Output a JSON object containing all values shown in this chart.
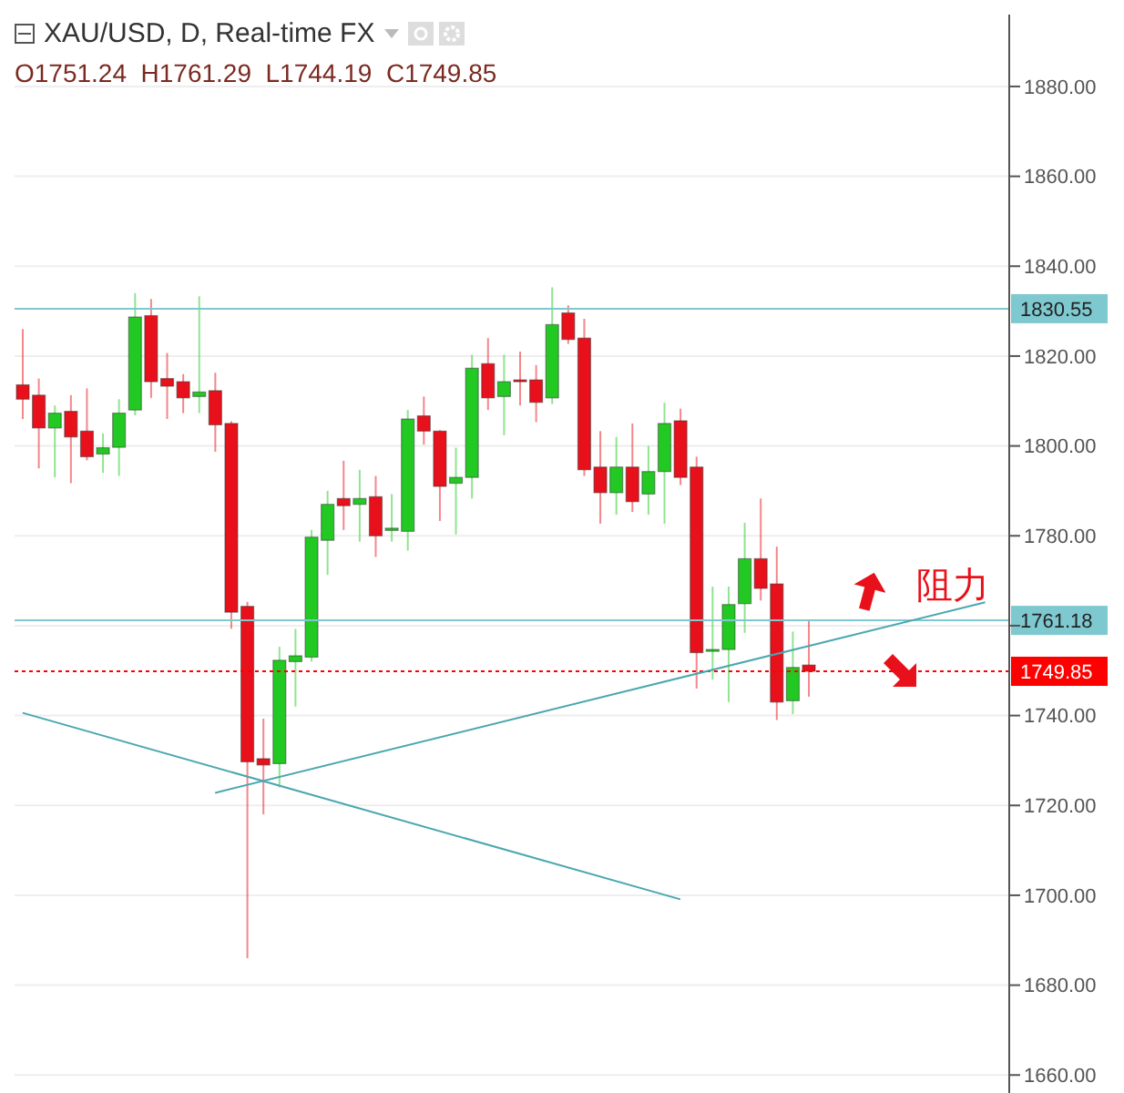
{
  "chart_data": {
    "type": "candlestick",
    "title": "XAU/USD, D, Real-time FX",
    "subtitle": "O1751.24  H1761.29  L1744.19  C1749.85",
    "categories": [
      null,
      null,
      null,
      null,
      null,
      null,
      null,
      null,
      null,
      null,
      null,
      null,
      null,
      null,
      null,
      null,
      null,
      null,
      null,
      null,
      null,
      null,
      null,
      null,
      null,
      null,
      null,
      null,
      null,
      null,
      null,
      null,
      null,
      null,
      null,
      null,
      null,
      null,
      null,
      null,
      null,
      null,
      null,
      null,
      null,
      null,
      null,
      null,
      null,
      null,
      null,
      null,
      null,
      null,
      null,
      null,
      null,
      null,
      null,
      null,
      null,
      null
    ],
    "ohlc": [
      [
        1813.6,
        1826,
        1806,
        1810.4
      ],
      [
        1811.3,
        1815,
        1795,
        1804
      ],
      [
        1804,
        1809,
        1793,
        1807.3
      ],
      [
        1807.7,
        1811.3,
        1791.7,
        1802
      ],
      [
        1803.3,
        1812.8,
        1796.8,
        1797.6
      ],
      [
        1798.2,
        1802.8,
        1794,
        1799.6
      ],
      [
        1799.7,
        1810.4,
        1793.3,
        1807.3
      ],
      [
        1808,
        1834,
        1806.8,
        1828.7
      ],
      [
        1829,
        1832.7,
        1810.7,
        1814.3
      ],
      [
        1815,
        1820.7,
        1806,
        1813.3
      ],
      [
        1814.3,
        1816,
        1807.3,
        1810.7
      ],
      [
        1811,
        1833.3,
        1807.3,
        1812
      ],
      [
        1812.3,
        1816.3,
        1798.7,
        1804.7
      ],
      [
        1805,
        1805.5,
        1759.3,
        1763
      ],
      [
        1764.3,
        1765.3,
        1686,
        1729.7
      ],
      [
        1730.4,
        1739.3,
        1718,
        1729
      ],
      [
        1729.3,
        1755.3,
        1724,
        1752.3
      ],
      [
        1752,
        1759.3,
        1742,
        1753.3
      ],
      [
        1753,
        1781.3,
        1752,
        1779.7
      ],
      [
        1779,
        1790,
        1771.3,
        1787
      ],
      [
        1788.3,
        1796.7,
        1781.3,
        1786.7
      ],
      [
        1787,
        1794.7,
        1778.7,
        1788.3
      ],
      [
        1788.7,
        1793.3,
        1775.3,
        1780
      ],
      [
        1781.2,
        1789.3,
        1778.7,
        1781.7
      ],
      [
        1781,
        1808,
        1776.7,
        1806
      ],
      [
        1806.7,
        1811,
        1800.3,
        1803.3
      ],
      [
        1803.3,
        1803.5,
        1783.3,
        1791
      ],
      [
        1791.7,
        1799.6,
        1780.3,
        1793
      ],
      [
        1793,
        1820.3,
        1788.3,
        1817.3
      ],
      [
        1818.3,
        1824,
        1808,
        1810.7
      ],
      [
        1811,
        1820.3,
        1802.4,
        1814.3
      ],
      [
        1814.7,
        1821,
        1809,
        1814.3
      ],
      [
        1814.7,
        1818,
        1805.3,
        1809.7
      ],
      [
        1810.7,
        1835.3,
        1809.3,
        1827
      ],
      [
        1829.6,
        1831.3,
        1822.7,
        1823.7
      ],
      [
        1824,
        1828.3,
        1793.3,
        1794.7
      ],
      [
        1795.3,
        1803.3,
        1782.7,
        1789.6
      ],
      [
        1789.6,
        1802,
        1784.7,
        1795.3
      ],
      [
        1795.3,
        1805,
        1785.3,
        1787.6
      ],
      [
        1789.3,
        1800,
        1784.7,
        1794.3
      ],
      [
        1794.3,
        1809.6,
        1782.7,
        1805
      ],
      [
        1805.6,
        1808.3,
        1791.3,
        1793
      ],
      [
        1795.3,
        1797.6,
        1746,
        1754
      ],
      [
        1754.4,
        1768.7,
        1748,
        1754.7
      ],
      [
        1754.7,
        1768.7,
        1743,
        1764.7
      ],
      [
        1764.9,
        1782.9,
        1758.4,
        1774.9
      ],
      [
        1774.9,
        1788.3,
        1765.6,
        1768.3
      ],
      [
        1769.3,
        1777.6,
        1739,
        1743
      ],
      [
        1743.3,
        1758.7,
        1740.3,
        1750.7
      ],
      [
        1751.24,
        1761.29,
        1744.19,
        1749.85
      ],
      null,
      null,
      null,
      null,
      null,
      null,
      null,
      null,
      null,
      null,
      null,
      null
    ],
    "colors": [
      "#e8101a",
      "#e8101a",
      "#22c922",
      "#e8101a",
      "#e8101a",
      "#22c922",
      "#22c922",
      "#22c922",
      "#e8101a",
      "#e8101a",
      "#e8101a",
      "#22c922",
      "#e8101a",
      "#e8101a",
      "#e8101a",
      "#e8101a",
      "#22c922",
      "#22c922",
      "#22c922",
      "#22c922",
      "#e8101a",
      "#22c922",
      "#e8101a",
      "#22c922",
      "#22c922",
      "#e8101a",
      "#e8101a",
      "#22c922",
      "#22c922",
      "#e8101a",
      "#22c922",
      "#e8101a",
      "#e8101a",
      "#22c922",
      "#e8101a",
      "#e8101a",
      "#e8101a",
      "#22c922",
      "#e8101a",
      "#22c922",
      "#22c922",
      "#e8101a",
      "#e8101a",
      "#22c922",
      "#22c922",
      "#22c922",
      "#e8101a",
      "#e8101a",
      "#22c922",
      "#e8101a",
      null,
      null,
      null,
      null,
      null,
      null,
      null,
      null,
      null,
      null,
      null,
      null
    ],
    "series": [
      {
        "type": "line",
        "color": "#4aa7b0",
        "values": [
          null,
          null,
          null,
          null,
          null,
          null,
          null,
          null,
          null,
          null,
          null,
          null,
          1722.8,
          null,
          null,
          null,
          null,
          null,
          null,
          null,
          null,
          null,
          null,
          null,
          null,
          null,
          null,
          null,
          null,
          null,
          null,
          null,
          null,
          null,
          null,
          null,
          null,
          null,
          null,
          null,
          null,
          null,
          null,
          null,
          null,
          null,
          null,
          null,
          null,
          null,
          null,
          null,
          null,
          null,
          null,
          null,
          null,
          null,
          null,
          null,
          1765.2,
          null
        ]
      },
      {
        "type": "line",
        "color": "#4aa7b0",
        "values": [
          1740.6,
          null,
          null,
          null,
          null,
          null,
          null,
          null,
          null,
          null,
          null,
          null,
          null,
          null,
          null,
          null,
          null,
          null,
          null,
          null,
          null,
          null,
          null,
          null,
          null,
          null,
          null,
          null,
          null,
          null,
          null,
          null,
          null,
          null,
          null,
          null,
          null,
          null,
          null,
          null,
          null,
          1699.1,
          null,
          null,
          null,
          null,
          null,
          null,
          null,
          null,
          null,
          null,
          null,
          null,
          null,
          null,
          null,
          null,
          null,
          null,
          null,
          null
        ]
      }
    ],
    "ref_lines": [
      {
        "axis": "y",
        "value": 1830.55,
        "label": "1830.55",
        "color": "#7ec8d0",
        "line_style": "solid"
      },
      {
        "axis": "y",
        "value": 1761.18,
        "label": "1761.18",
        "color": "#7ec8d0",
        "line_style": "solid"
      },
      {
        "axis": "y",
        "value": 1749.85,
        "label": "1749.85",
        "color": "#ff0000",
        "line_style": "dotted"
      }
    ],
    "annotations": [
      "阻力"
    ],
    "ylim": [
      1656,
      1896
    ],
    "yticks": [
      {
        "value": 1660,
        "label": "1660.00"
      },
      {
        "value": 1680,
        "label": "1680.00"
      },
      {
        "value": 1700,
        "label": "1700.00"
      },
      {
        "value": 1720,
        "label": "1720.00"
      },
      {
        "value": 1740,
        "label": "1740.00"
      },
      {
        "value": 1760,
        "label": null
      },
      {
        "value": 1780,
        "label": "1780.00"
      },
      {
        "value": 1800,
        "label": "1800.00"
      },
      {
        "value": 1820,
        "label": "1820.00"
      },
      {
        "value": 1840,
        "label": "1840.00"
      },
      {
        "value": 1860,
        "label": "1860.00"
      },
      {
        "value": 1880,
        "label": "1880.00"
      }
    ],
    "grid": "y",
    "tick_labels": "y"
  }
}
